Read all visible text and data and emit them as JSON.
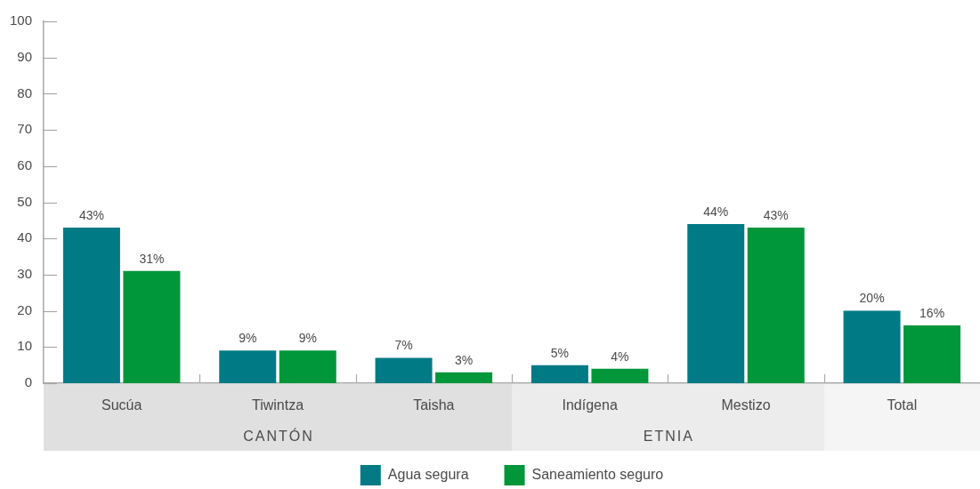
{
  "chart_data": {
    "type": "bar",
    "categories": [
      "Sucúa",
      "Tiwintza",
      "Taisha",
      "Indígena",
      "Mestizo",
      "Total"
    ],
    "series": [
      {
        "name": "Agua segura",
        "color": "#007a85",
        "values": [
          43,
          9,
          7,
          5,
          44,
          20
        ],
        "value_labels": [
          "43%",
          "9%",
          "7%",
          "5%",
          "44%",
          "20%"
        ]
      },
      {
        "name": "Saneamiento seguro",
        "color": "#00963a",
        "values": [
          31,
          9,
          3,
          4,
          43,
          16
        ],
        "value_labels": [
          "31%",
          "9%",
          "3%",
          "4%",
          "43%",
          "16%"
        ]
      }
    ],
    "ylim": [
      0,
      100
    ],
    "yticks": [
      0,
      10,
      20,
      30,
      40,
      50,
      60,
      70,
      80,
      90,
      100
    ],
    "grid": false,
    "legend": "bottom",
    "annotations": [
      "CANTÓN",
      "ETNIA"
    ]
  }
}
